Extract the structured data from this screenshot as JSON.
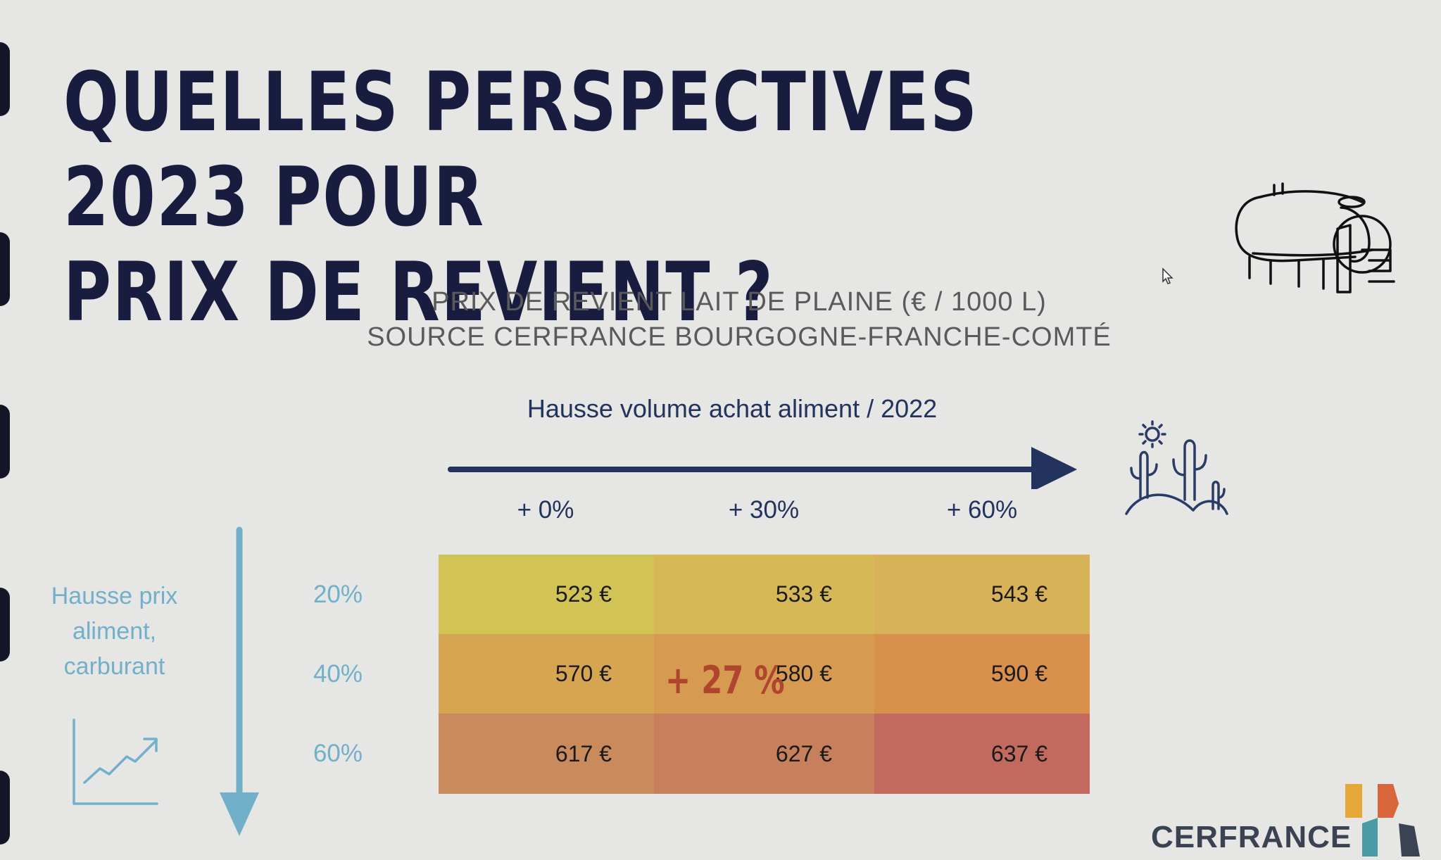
{
  "slide": {
    "title_line1": "QUELLES PERSPECTIVES 2023 POUR",
    "title_line2": "PRIX DE REVIENT ?",
    "subtitle_line1": "PRIX DE REVIENT LAIT DE PLAINE (€ / 1000 L)",
    "subtitle_line2": "SOURCE CERFRANCE BOURGOGNE-FRANCHE-COMTÉ",
    "x_axis_label": "Hausse volume achat aliment / 2022",
    "y_axis_label_lines": [
      "Hausse prix",
      "aliment,",
      "carburant"
    ],
    "highlight": "+ 27 %",
    "logo": "CERFRANCE"
  },
  "table": {
    "columns": [
      "+ 0%",
      "+ 30%",
      "+ 60%"
    ],
    "rows": [
      "20%",
      "40%",
      "60%"
    ],
    "values": [
      [
        "523 €",
        "533 €",
        "543 €"
      ],
      [
        "570 €",
        "580 €",
        "590 €"
      ],
      [
        "617 €",
        "627 €",
        "637 €"
      ]
    ],
    "colors": [
      [
        "#d2c355",
        "#d6b857",
        "#d8b258"
      ],
      [
        "#d5a552",
        "#d69a50",
        "#d8904c"
      ],
      [
        "#c98a5c",
        "#c8805c",
        "#c26a60"
      ]
    ]
  },
  "colors": {
    "title": "#181c3e",
    "arrow_x": "#22335e",
    "arrow_y": "#72b0ca",
    "highlight": "#b0452e"
  },
  "icons": [
    "milk-tank-icon",
    "desert-cactus-icon",
    "trend-chart-icon",
    "cursor-icon",
    "cerfrance-logo-icon"
  ]
}
